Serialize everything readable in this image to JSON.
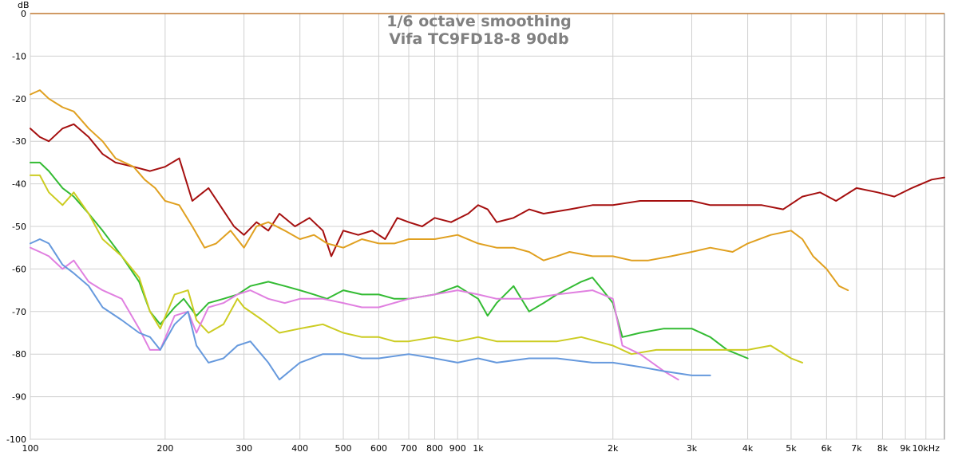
{
  "chart_data": {
    "type": "line",
    "title": "1/6 octave smoothing",
    "subtitle": "Vifa TC9FD18-8 90db",
    "xscale": "log",
    "xlim": [
      100,
      11000
    ],
    "ylim": [
      -100,
      0
    ],
    "grid": true,
    "x_ticks": [
      {
        "value": 100,
        "label": "100"
      },
      {
        "value": 200,
        "label": "200"
      },
      {
        "value": 300,
        "label": "300"
      },
      {
        "value": 400,
        "label": "400"
      },
      {
        "value": 500,
        "label": "500"
      },
      {
        "value": 600,
        "label": "600"
      },
      {
        "value": 700,
        "label": "700"
      },
      {
        "value": 800,
        "label": "800"
      },
      {
        "value": 900,
        "label": "900"
      },
      {
        "value": 1000,
        "label": "1k"
      },
      {
        "value": 2000,
        "label": "2k"
      },
      {
        "value": 3000,
        "label": "3k"
      },
      {
        "value": 4000,
        "label": "4k"
      },
      {
        "value": 5000,
        "label": "5k"
      },
      {
        "value": 6000,
        "label": "6k"
      },
      {
        "value": 7000,
        "label": "7k"
      },
      {
        "value": 8000,
        "label": "8k"
      },
      {
        "value": 9000,
        "label": "9k"
      },
      {
        "value": 10000,
        "label": "10kHz"
      }
    ],
    "y_ticks": [
      {
        "value": 0,
        "label": "0"
      },
      {
        "value": -10,
        "label": "-10"
      },
      {
        "value": -20,
        "label": "-20"
      },
      {
        "value": -30,
        "label": "-30"
      },
      {
        "value": -40,
        "label": "-40"
      },
      {
        "value": -50,
        "label": "-50"
      },
      {
        "value": -60,
        "label": "-60"
      },
      {
        "value": -70,
        "label": "-70"
      },
      {
        "value": -80,
        "label": "-80"
      },
      {
        "value": -90,
        "label": "-90"
      },
      {
        "value": -100,
        "label": "-100"
      }
    ],
    "y_unit": "dB",
    "series": [
      {
        "color": "#a50f0f",
        "points": [
          [
            100,
            -27
          ],
          [
            105,
            -29
          ],
          [
            110,
            -30
          ],
          [
            118,
            -27
          ],
          [
            125,
            -26
          ],
          [
            135,
            -29
          ],
          [
            145,
            -33
          ],
          [
            155,
            -35
          ],
          [
            170,
            -36
          ],
          [
            185,
            -37
          ],
          [
            200,
            -36
          ],
          [
            215,
            -34
          ],
          [
            230,
            -44
          ],
          [
            250,
            -41
          ],
          [
            265,
            -45
          ],
          [
            285,
            -50
          ],
          [
            300,
            -52
          ],
          [
            320,
            -49
          ],
          [
            340,
            -51
          ],
          [
            360,
            -47
          ],
          [
            390,
            -50
          ],
          [
            420,
            -48
          ],
          [
            450,
            -51
          ],
          [
            470,
            -57
          ],
          [
            500,
            -51
          ],
          [
            540,
            -52
          ],
          [
            580,
            -51
          ],
          [
            620,
            -53
          ],
          [
            660,
            -48
          ],
          [
            700,
            -49
          ],
          [
            750,
            -50
          ],
          [
            800,
            -48
          ],
          [
            870,
            -49
          ],
          [
            950,
            -47
          ],
          [
            1000,
            -45
          ],
          [
            1050,
            -46
          ],
          [
            1100,
            -49
          ],
          [
            1200,
            -48
          ],
          [
            1300,
            -46
          ],
          [
            1400,
            -47
          ],
          [
            1600,
            -46
          ],
          [
            1800,
            -45
          ],
          [
            2000,
            -45
          ],
          [
            2300,
            -44
          ],
          [
            2600,
            -44
          ],
          [
            3000,
            -44
          ],
          [
            3300,
            -45
          ],
          [
            3800,
            -45
          ],
          [
            4300,
            -45
          ],
          [
            4800,
            -46
          ],
          [
            5300,
            -43
          ],
          [
            5800,
            -42
          ],
          [
            6300,
            -44
          ],
          [
            7000,
            -41
          ],
          [
            7800,
            -42
          ],
          [
            8500,
            -43
          ],
          [
            9300,
            -41
          ],
          [
            10300,
            -39
          ],
          [
            11000,
            -38.5
          ]
        ]
      },
      {
        "color": "#e0a020",
        "points": [
          [
            100,
            -19
          ],
          [
            105,
            -18
          ],
          [
            110,
            -20
          ],
          [
            118,
            -22
          ],
          [
            125,
            -23
          ],
          [
            135,
            -27
          ],
          [
            145,
            -30
          ],
          [
            155,
            -34
          ],
          [
            170,
            -36
          ],
          [
            180,
            -39
          ],
          [
            190,
            -41
          ],
          [
            200,
            -44
          ],
          [
            215,
            -45
          ],
          [
            230,
            -50
          ],
          [
            245,
            -55
          ],
          [
            260,
            -54
          ],
          [
            280,
            -51
          ],
          [
            300,
            -55
          ],
          [
            320,
            -50
          ],
          [
            340,
            -49
          ],
          [
            370,
            -51
          ],
          [
            400,
            -53
          ],
          [
            430,
            -52
          ],
          [
            460,
            -54
          ],
          [
            500,
            -55
          ],
          [
            550,
            -53
          ],
          [
            600,
            -54
          ],
          [
            650,
            -54
          ],
          [
            700,
            -53
          ],
          [
            800,
            -53
          ],
          [
            900,
            -52
          ],
          [
            1000,
            -54
          ],
          [
            1100,
            -55
          ],
          [
            1200,
            -55
          ],
          [
            1300,
            -56
          ],
          [
            1400,
            -58
          ],
          [
            1500,
            -57
          ],
          [
            1600,
            -56
          ],
          [
            1800,
            -57
          ],
          [
            2000,
            -57
          ],
          [
            2200,
            -58
          ],
          [
            2400,
            -58
          ],
          [
            2700,
            -57
          ],
          [
            3000,
            -56
          ],
          [
            3300,
            -55
          ],
          [
            3700,
            -56
          ],
          [
            4000,
            -54
          ],
          [
            4500,
            -52
          ],
          [
            5000,
            -51
          ],
          [
            5300,
            -53
          ],
          [
            5600,
            -57
          ],
          [
            6000,
            -60
          ],
          [
            6400,
            -64
          ],
          [
            6700,
            -65
          ]
        ]
      },
      {
        "color": "#33bb33",
        "points": [
          [
            100,
            -35
          ],
          [
            105,
            -35
          ],
          [
            110,
            -37
          ],
          [
            118,
            -41
          ],
          [
            125,
            -43
          ],
          [
            135,
            -47
          ],
          [
            145,
            -51
          ],
          [
            160,
            -57
          ],
          [
            175,
            -63
          ],
          [
            185,
            -70
          ],
          [
            195,
            -73
          ],
          [
            210,
            -69
          ],
          [
            220,
            -67
          ],
          [
            235,
            -71
          ],
          [
            250,
            -68
          ],
          [
            270,
            -67
          ],
          [
            290,
            -66
          ],
          [
            310,
            -64
          ],
          [
            340,
            -63
          ],
          [
            370,
            -64
          ],
          [
            400,
            -65
          ],
          [
            430,
            -66
          ],
          [
            460,
            -67
          ],
          [
            500,
            -65
          ],
          [
            550,
            -66
          ],
          [
            600,
            -66
          ],
          [
            650,
            -67
          ],
          [
            700,
            -67
          ],
          [
            800,
            -66
          ],
          [
            900,
            -64
          ],
          [
            1000,
            -67
          ],
          [
            1050,
            -71
          ],
          [
            1100,
            -68
          ],
          [
            1200,
            -64
          ],
          [
            1300,
            -70
          ],
          [
            1400,
            -68
          ],
          [
            1500,
            -66
          ],
          [
            1700,
            -63
          ],
          [
            1800,
            -62
          ],
          [
            1900,
            -65
          ],
          [
            2000,
            -68
          ],
          [
            2100,
            -76
          ],
          [
            2300,
            -75
          ],
          [
            2600,
            -74
          ],
          [
            3000,
            -74
          ],
          [
            3300,
            -76
          ],
          [
            3600,
            -79
          ],
          [
            4000,
            -81
          ]
        ]
      },
      {
        "color": "#cccc22",
        "points": [
          [
            100,
            -38
          ],
          [
            105,
            -38
          ],
          [
            110,
            -42
          ],
          [
            118,
            -45
          ],
          [
            125,
            -42
          ],
          [
            135,
            -47
          ],
          [
            145,
            -53
          ],
          [
            160,
            -57
          ],
          [
            175,
            -62
          ],
          [
            185,
            -70
          ],
          [
            195,
            -74
          ],
          [
            210,
            -66
          ],
          [
            225,
            -65
          ],
          [
            235,
            -72
          ],
          [
            250,
            -75
          ],
          [
            270,
            -73
          ],
          [
            290,
            -67
          ],
          [
            300,
            -69
          ],
          [
            330,
            -72
          ],
          [
            360,
            -75
          ],
          [
            400,
            -74
          ],
          [
            450,
            -73
          ],
          [
            500,
            -75
          ],
          [
            550,
            -76
          ],
          [
            600,
            -76
          ],
          [
            650,
            -77
          ],
          [
            700,
            -77
          ],
          [
            800,
            -76
          ],
          [
            900,
            -77
          ],
          [
            1000,
            -76
          ],
          [
            1100,
            -77
          ],
          [
            1300,
            -77
          ],
          [
            1500,
            -77
          ],
          [
            1700,
            -76
          ],
          [
            2000,
            -78
          ],
          [
            2200,
            -80
          ],
          [
            2500,
            -79
          ],
          [
            3000,
            -79
          ],
          [
            3500,
            -79
          ],
          [
            4000,
            -79
          ],
          [
            4500,
            -78
          ],
          [
            5000,
            -81
          ],
          [
            5300,
            -82
          ]
        ]
      },
      {
        "color": "#e080e0",
        "points": [
          [
            100,
            -55
          ],
          [
            105,
            -56
          ],
          [
            110,
            -57
          ],
          [
            118,
            -60
          ],
          [
            125,
            -58
          ],
          [
            135,
            -63
          ],
          [
            145,
            -65
          ],
          [
            160,
            -67
          ],
          [
            175,
            -74
          ],
          [
            185,
            -79
          ],
          [
            195,
            -79
          ],
          [
            210,
            -71
          ],
          [
            225,
            -70
          ],
          [
            235,
            -75
          ],
          [
            250,
            -69
          ],
          [
            270,
            -68
          ],
          [
            290,
            -66
          ],
          [
            310,
            -65
          ],
          [
            340,
            -67
          ],
          [
            370,
            -68
          ],
          [
            400,
            -67
          ],
          [
            450,
            -67
          ],
          [
            500,
            -68
          ],
          [
            550,
            -69
          ],
          [
            600,
            -69
          ],
          [
            700,
            -67
          ],
          [
            800,
            -66
          ],
          [
            900,
            -65
          ],
          [
            1000,
            -66
          ],
          [
            1100,
            -67
          ],
          [
            1300,
            -67
          ],
          [
            1500,
            -66
          ],
          [
            1800,
            -65
          ],
          [
            2000,
            -67
          ],
          [
            2100,
            -78
          ],
          [
            2300,
            -80
          ],
          [
            2600,
            -84
          ],
          [
            2800,
            -86
          ]
        ]
      },
      {
        "color": "#6699dd",
        "points": [
          [
            100,
            -54
          ],
          [
            105,
            -53
          ],
          [
            110,
            -54
          ],
          [
            118,
            -59
          ],
          [
            125,
            -61
          ],
          [
            135,
            -64
          ],
          [
            145,
            -69
          ],
          [
            160,
            -72
          ],
          [
            175,
            -75
          ],
          [
            185,
            -76
          ],
          [
            195,
            -79
          ],
          [
            210,
            -73
          ],
          [
            225,
            -70
          ],
          [
            235,
            -78
          ],
          [
            250,
            -82
          ],
          [
            270,
            -81
          ],
          [
            290,
            -78
          ],
          [
            310,
            -77
          ],
          [
            340,
            -82
          ],
          [
            360,
            -86
          ],
          [
            400,
            -82
          ],
          [
            450,
            -80
          ],
          [
            500,
            -80
          ],
          [
            550,
            -81
          ],
          [
            600,
            -81
          ],
          [
            700,
            -80
          ],
          [
            800,
            -81
          ],
          [
            900,
            -82
          ],
          [
            1000,
            -81
          ],
          [
            1100,
            -82
          ],
          [
            1300,
            -81
          ],
          [
            1500,
            -81
          ],
          [
            1800,
            -82
          ],
          [
            2000,
            -82
          ],
          [
            2300,
            -83
          ],
          [
            2600,
            -84
          ],
          [
            3000,
            -85
          ],
          [
            3300,
            -85
          ]
        ]
      }
    ]
  }
}
